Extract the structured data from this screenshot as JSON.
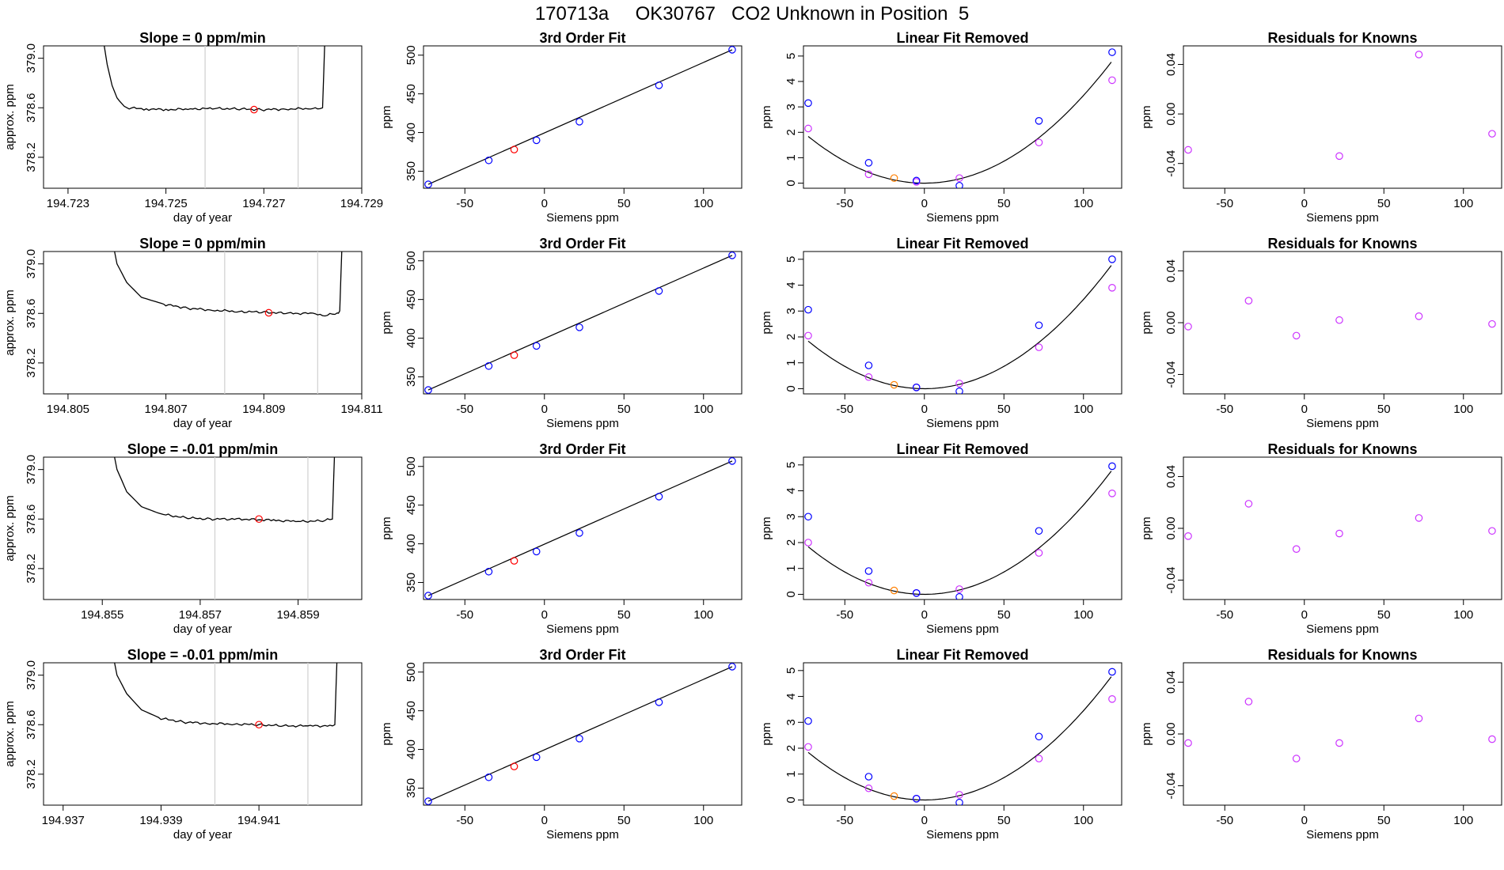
{
  "title": "170713a     OK30767   CO2 Unknown in Position  5",
  "colors": {
    "trace": "#000000",
    "blue": "#0000ff",
    "red": "#ff0000",
    "orange": "#ff7f00",
    "magenta": "#cc33ff",
    "vline": "#d3d3d3"
  },
  "labels": {
    "xlab_time": "day of year",
    "ylab_time": "approx. ppm",
    "fit_title": "3rd Order Fit",
    "linfit_title": "Linear Fit Removed",
    "resid_title": "Residuals for Knowns",
    "xlab_siemens": "Siemens ppm",
    "ylab_ppm": "ppm"
  },
  "chart_data": [
    {
      "type": "line",
      "row": 1,
      "kind": "timeseries",
      "title": "Slope =  0  ppm/min",
      "xlim": [
        194.7225,
        194.729
      ],
      "ylim": [
        377.95,
        379.1
      ],
      "xticks": [
        "194.723",
        "194.725",
        "194.727",
        "194.729"
      ],
      "xtick_values": [
        194.723,
        194.725,
        194.727,
        194.729
      ],
      "yticks": [
        "378.2",
        "378.6",
        "379.0"
      ],
      "ytick_values": [
        378.2,
        378.6,
        379.0
      ],
      "vlines": [
        194.7258,
        194.7277
      ],
      "trace": [
        [
          194.7237,
          379.2
        ],
        [
          194.7238,
          378.95
        ],
        [
          194.7239,
          378.78
        ],
        [
          194.724,
          378.68
        ],
        [
          194.7241,
          378.63
        ],
        [
          194.7242,
          378.6
        ],
        [
          194.7246,
          378.59
        ],
        [
          194.725,
          378.585
        ],
        [
          194.7255,
          378.59
        ],
        [
          194.726,
          378.595
        ],
        [
          194.7265,
          378.59
        ],
        [
          194.727,
          378.585
        ],
        [
          194.7275,
          378.59
        ],
        [
          194.728,
          378.595
        ],
        [
          194.7282,
          378.6
        ],
        [
          194.72825,
          379.2
        ]
      ],
      "marker": {
        "x": 194.7268,
        "y": 378.585
      }
    },
    {
      "type": "scatter",
      "row": 1,
      "kind": "fit",
      "title": "3rd Order Fit",
      "xlim": [
        -76,
        124
      ],
      "ylim": [
        328,
        512
      ],
      "xticks": [
        "-50",
        "0",
        "50",
        "100"
      ],
      "xtick_values": [
        -50,
        0,
        50,
        100
      ],
      "yticks": [
        "350",
        "400",
        "450",
        "500"
      ],
      "ytick_values": [
        350,
        400,
        450,
        500
      ],
      "line": {
        "x1": -73,
        "y1": 333,
        "x2": 118,
        "y2": 507
      },
      "knowns": {
        "x": [
          -73,
          -35,
          -5,
          22,
          72,
          118
        ],
        "y": [
          333,
          364,
          390,
          414,
          461,
          507
        ]
      },
      "unknown": {
        "x": -19,
        "y": 378
      }
    },
    {
      "type": "scatter",
      "row": 1,
      "kind": "linfit",
      "title": "Linear Fit Removed",
      "xlim": [
        -76,
        124
      ],
      "ylim": [
        -0.2,
        5.4
      ],
      "xticks": [
        "-50",
        "0",
        "50",
        "100"
      ],
      "xtick_values": [
        -50,
        0,
        50,
        100
      ],
      "yticks": [
        "0",
        "1",
        "2",
        "3",
        "4",
        "5"
      ],
      "ytick_values": [
        0,
        1,
        2,
        3,
        4,
        5
      ],
      "knowns_blue": {
        "x": [
          -73,
          -35,
          -5,
          22,
          72,
          118
        ],
        "y": [
          3.15,
          0.8,
          0.1,
          -0.1,
          2.45,
          5.15
        ]
      },
      "knowns_magenta": {
        "x": [
          -73,
          -35,
          -5,
          22,
          72,
          118
        ],
        "y": [
          2.15,
          0.35,
          0.05,
          0.2,
          1.6,
          4.05
        ]
      },
      "unknown": {
        "x": -19,
        "y": 0.2
      },
      "curve": {
        "a": 0.000345,
        "h": 0,
        "k": 0,
        "x_from": -73,
        "x_to": 118
      }
    },
    {
      "type": "scatter",
      "row": 1,
      "kind": "resid",
      "title": "Residuals for Knowns",
      "xlim": [
        -76,
        124
      ],
      "ylim": [
        -0.06,
        0.055
      ],
      "xticks": [
        "-50",
        "0",
        "50",
        "100"
      ],
      "xtick_values": [
        -50,
        0,
        50,
        100
      ],
      "yticks": [
        "-0.04",
        "0.00",
        "0.04"
      ],
      "ytick_values": [
        -0.04,
        0.0,
        0.04
      ],
      "points": {
        "x": [
          -73,
          22,
          72,
          118
        ],
        "y": [
          -0.029,
          -0.034,
          0.048,
          -0.016
        ]
      }
    },
    {
      "type": "line",
      "row": 2,
      "kind": "timeseries",
      "title": "Slope =  0  ppm/min",
      "xlim": [
        194.8045,
        194.811
      ],
      "ylim": [
        377.95,
        379.1
      ],
      "xticks": [
        "194.805",
        "194.807",
        "194.809",
        "194.811"
      ],
      "xtick_values": [
        194.805,
        194.807,
        194.809,
        194.811
      ],
      "yticks": [
        "378.2",
        "378.6",
        "379.0"
      ],
      "ytick_values": [
        378.2,
        378.6,
        379.0
      ],
      "vlines": [
        194.8082,
        194.8101
      ],
      "trace": [
        [
          194.8059,
          379.2
        ],
        [
          194.806,
          379.0
        ],
        [
          194.8062,
          378.85
        ],
        [
          194.8065,
          378.73
        ],
        [
          194.807,
          378.67
        ],
        [
          194.8075,
          378.64
        ],
        [
          194.808,
          378.625
        ],
        [
          194.8085,
          378.615
        ],
        [
          194.809,
          378.61
        ],
        [
          194.8095,
          378.6
        ],
        [
          194.81,
          378.6
        ],
        [
          194.8102,
          378.58
        ],
        [
          194.8105,
          378.6
        ],
        [
          194.81055,
          378.62
        ],
        [
          194.8106,
          379.2
        ]
      ],
      "marker": {
        "x": 194.8091,
        "y": 378.605
      }
    },
    {
      "type": "scatter",
      "row": 2,
      "kind": "fit",
      "title": "3rd Order Fit",
      "xlim": [
        -76,
        124
      ],
      "ylim": [
        328,
        512
      ],
      "xticks": [
        "-50",
        "0",
        "50",
        "100"
      ],
      "xtick_values": [
        -50,
        0,
        50,
        100
      ],
      "yticks": [
        "350",
        "400",
        "450",
        "500"
      ],
      "ytick_values": [
        350,
        400,
        450,
        500
      ],
      "line": {
        "x1": -73,
        "y1": 333,
        "x2": 118,
        "y2": 507
      },
      "knowns": {
        "x": [
          -73,
          -35,
          -5,
          22,
          72,
          118
        ],
        "y": [
          333,
          364,
          390,
          414,
          461,
          507
        ]
      },
      "unknown": {
        "x": -19,
        "y": 378
      }
    },
    {
      "type": "scatter",
      "row": 2,
      "kind": "linfit",
      "title": "Linear Fit Removed",
      "xlim": [
        -76,
        124
      ],
      "ylim": [
        -0.2,
        5.3
      ],
      "xticks": [
        "-50",
        "0",
        "50",
        "100"
      ],
      "xtick_values": [
        -50,
        0,
        50,
        100
      ],
      "yticks": [
        "0",
        "1",
        "2",
        "3",
        "4",
        "5"
      ],
      "ytick_values": [
        0,
        1,
        2,
        3,
        4,
        5
      ],
      "knowns_blue": {
        "x": [
          -73,
          -35,
          -5,
          22,
          72,
          118
        ],
        "y": [
          3.05,
          0.9,
          0.05,
          -0.1,
          2.45,
          5.0
        ]
      },
      "knowns_magenta": {
        "x": [
          -73,
          -35,
          -5,
          22,
          72,
          118
        ],
        "y": [
          2.05,
          0.45,
          0.05,
          0.2,
          1.6,
          3.9
        ]
      },
      "unknown": {
        "x": -19,
        "y": 0.15
      },
      "curve": {
        "a": 0.000345,
        "h": 0,
        "k": 0,
        "x_from": -73,
        "x_to": 118
      }
    },
    {
      "type": "scatter",
      "row": 2,
      "kind": "resid",
      "title": "Residuals for Knowns",
      "xlim": [
        -76,
        124
      ],
      "ylim": [
        -0.055,
        0.055
      ],
      "xticks": [
        "-50",
        "0",
        "50",
        "100"
      ],
      "xtick_values": [
        -50,
        0,
        50,
        100
      ],
      "yticks": [
        "-0.04",
        "0.00",
        "0.04"
      ],
      "ytick_values": [
        -0.04,
        0.0,
        0.04
      ],
      "points": {
        "x": [
          -73,
          -35,
          -5,
          22,
          72,
          118
        ],
        "y": [
          -0.003,
          0.017,
          -0.01,
          0.002,
          0.005,
          -0.001
        ]
      }
    },
    {
      "type": "line",
      "row": 3,
      "kind": "timeseries",
      "title": "Slope =  -0.01  ppm/min",
      "xlim": [
        194.8538,
        194.8603
      ],
      "ylim": [
        377.95,
        379.1
      ],
      "xticks": [
        "194.855",
        "194.857",
        "194.859"
      ],
      "xtick_values": [
        194.855,
        194.857,
        194.859
      ],
      "yticks": [
        "378.2",
        "378.6",
        "379.0"
      ],
      "ytick_values": [
        378.2,
        378.6,
        379.0
      ],
      "vlines": [
        194.8573,
        194.8592
      ],
      "trace": [
        [
          194.8552,
          379.2
        ],
        [
          194.8553,
          379.0
        ],
        [
          194.8555,
          378.82
        ],
        [
          194.8558,
          378.7
        ],
        [
          194.8562,
          378.64
        ],
        [
          194.8567,
          378.61
        ],
        [
          194.8572,
          378.6
        ],
        [
          194.8578,
          378.6
        ],
        [
          194.8585,
          378.59
        ],
        [
          194.859,
          378.58
        ],
        [
          194.8595,
          378.585
        ],
        [
          194.8597,
          378.6
        ],
        [
          194.85975,
          379.2
        ]
      ],
      "marker": {
        "x": 194.8582,
        "y": 378.6
      }
    },
    {
      "type": "scatter",
      "row": 3,
      "kind": "fit",
      "title": "3rd Order Fit",
      "xlim": [
        -76,
        124
      ],
      "ylim": [
        328,
        512
      ],
      "xticks": [
        "-50",
        "0",
        "50",
        "100"
      ],
      "xtick_values": [
        -50,
        0,
        50,
        100
      ],
      "yticks": [
        "350",
        "400",
        "450",
        "500"
      ],
      "ytick_values": [
        350,
        400,
        450,
        500
      ],
      "line": {
        "x1": -73,
        "y1": 333,
        "x2": 118,
        "y2": 507
      },
      "knowns": {
        "x": [
          -73,
          -35,
          -5,
          22,
          72,
          118
        ],
        "y": [
          333,
          364,
          390,
          414,
          461,
          507
        ]
      },
      "unknown": {
        "x": -19,
        "y": 378
      }
    },
    {
      "type": "scatter",
      "row": 3,
      "kind": "linfit",
      "title": "Linear Fit Removed",
      "xlim": [
        -76,
        124
      ],
      "ylim": [
        -0.2,
        5.3
      ],
      "xticks": [
        "-50",
        "0",
        "50",
        "100"
      ],
      "xtick_values": [
        -50,
        0,
        50,
        100
      ],
      "yticks": [
        "0",
        "1",
        "2",
        "3",
        "4",
        "5"
      ],
      "ytick_values": [
        0,
        1,
        2,
        3,
        4,
        5
      ],
      "knowns_blue": {
        "x": [
          -73,
          -35,
          -5,
          22,
          72,
          118
        ],
        "y": [
          3.0,
          0.9,
          0.05,
          -0.1,
          2.45,
          4.95
        ]
      },
      "knowns_magenta": {
        "x": [
          -73,
          -35,
          -5,
          22,
          72,
          118
        ],
        "y": [
          2.0,
          0.45,
          0.05,
          0.2,
          1.6,
          3.9
        ]
      },
      "unknown": {
        "x": -19,
        "y": 0.15
      },
      "curve": {
        "a": 0.000345,
        "h": 0,
        "k": 0,
        "x_from": -73,
        "x_to": 118
      }
    },
    {
      "type": "scatter",
      "row": 3,
      "kind": "resid",
      "title": "Residuals for Knowns",
      "xlim": [
        -76,
        124
      ],
      "ylim": [
        -0.055,
        0.055
      ],
      "xticks": [
        "-50",
        "0",
        "50",
        "100"
      ],
      "xtick_values": [
        -50,
        0,
        50,
        100
      ],
      "yticks": [
        "-0.04",
        "0.00",
        "0.04"
      ],
      "ytick_values": [
        -0.04,
        0.0,
        0.04
      ],
      "points": {
        "x": [
          -73,
          -35,
          -5,
          22,
          72,
          118
        ],
        "y": [
          -0.006,
          0.019,
          -0.016,
          -0.004,
          0.008,
          -0.002
        ]
      }
    },
    {
      "type": "line",
      "row": 4,
      "kind": "timeseries",
      "title": "Slope =  -0.01  ppm/min",
      "xlim": [
        194.9366,
        194.9431
      ],
      "ylim": [
        377.95,
        379.1
      ],
      "xticks": [
        "194.937",
        "194.939",
        "194.941"
      ],
      "xtick_values": [
        194.937,
        194.939,
        194.941
      ],
      "yticks": [
        "378.2",
        "378.6",
        "379.0"
      ],
      "ytick_values": [
        378.2,
        378.6,
        379.0
      ],
      "vlines": [
        194.9401,
        194.942
      ],
      "trace": [
        [
          194.938,
          379.2
        ],
        [
          194.9381,
          379.0
        ],
        [
          194.9383,
          378.85
        ],
        [
          194.9386,
          378.72
        ],
        [
          194.939,
          378.65
        ],
        [
          194.9395,
          378.62
        ],
        [
          194.94,
          378.61
        ],
        [
          194.9405,
          378.605
        ],
        [
          194.941,
          378.6
        ],
        [
          194.9415,
          378.59
        ],
        [
          194.942,
          378.59
        ],
        [
          194.9425,
          378.59
        ],
        [
          194.94255,
          378.6
        ],
        [
          194.9426,
          379.2
        ]
      ],
      "marker": {
        "x": 194.941,
        "y": 378.6
      }
    },
    {
      "type": "scatter",
      "row": 4,
      "kind": "fit",
      "title": "3rd Order Fit",
      "xlim": [
        -76,
        124
      ],
      "ylim": [
        328,
        512
      ],
      "xticks": [
        "-50",
        "0",
        "50",
        "100"
      ],
      "xtick_values": [
        -50,
        0,
        50,
        100
      ],
      "yticks": [
        "350",
        "400",
        "450",
        "500"
      ],
      "ytick_values": [
        350,
        400,
        450,
        500
      ],
      "line": {
        "x1": -73,
        "y1": 333,
        "x2": 118,
        "y2": 507
      },
      "knowns": {
        "x": [
          -73,
          -35,
          -5,
          22,
          72,
          118
        ],
        "y": [
          333,
          364,
          390,
          414,
          461,
          507
        ]
      },
      "unknown": {
        "x": -19,
        "y": 378
      }
    },
    {
      "type": "scatter",
      "row": 4,
      "kind": "linfit",
      "title": "Linear Fit Removed",
      "xlim": [
        -76,
        124
      ],
      "ylim": [
        -0.2,
        5.3
      ],
      "xticks": [
        "-50",
        "0",
        "50",
        "100"
      ],
      "xtick_values": [
        -50,
        0,
        50,
        100
      ],
      "yticks": [
        "0",
        "1",
        "2",
        "3",
        "4",
        "5"
      ],
      "ytick_values": [
        0,
        1,
        2,
        3,
        4,
        5
      ],
      "knowns_blue": {
        "x": [
          -73,
          -35,
          -5,
          22,
          72,
          118
        ],
        "y": [
          3.05,
          0.9,
          0.05,
          -0.1,
          2.45,
          4.95
        ]
      },
      "knowns_magenta": {
        "x": [
          -73,
          -35,
          -5,
          22,
          72,
          118
        ],
        "y": [
          2.05,
          0.45,
          0.05,
          0.2,
          1.6,
          3.9
        ]
      },
      "unknown": {
        "x": -19,
        "y": 0.15
      },
      "curve": {
        "a": 0.000345,
        "h": 0,
        "k": 0,
        "x_from": -73,
        "x_to": 118
      }
    },
    {
      "type": "scatter",
      "row": 4,
      "kind": "resid",
      "title": "Residuals for Knowns",
      "xlim": [
        -76,
        124
      ],
      "ylim": [
        -0.055,
        0.055
      ],
      "xticks": [
        "-50",
        "0",
        "50",
        "100"
      ],
      "xtick_values": [
        -50,
        0,
        50,
        100
      ],
      "yticks": [
        "-0.04",
        "0.00",
        "0.04"
      ],
      "ytick_values": [
        -0.04,
        0.0,
        0.04
      ],
      "points": {
        "x": [
          -73,
          -35,
          -5,
          22,
          72,
          118
        ],
        "y": [
          -0.007,
          0.025,
          -0.019,
          -0.007,
          0.012,
          -0.004
        ]
      }
    }
  ]
}
